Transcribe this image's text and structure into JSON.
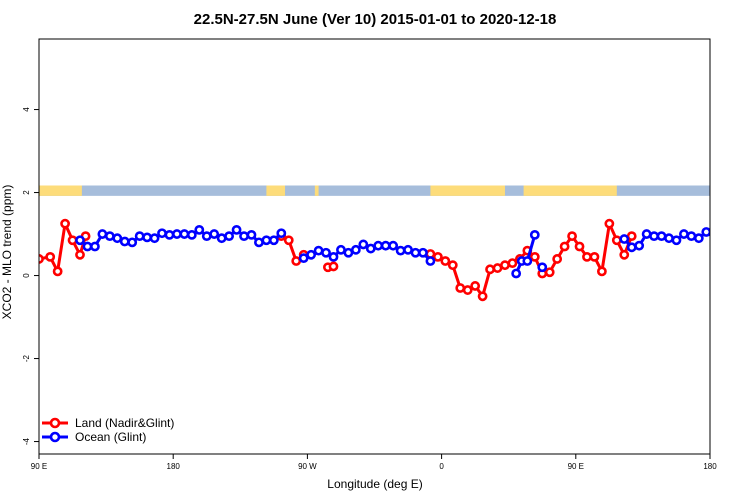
{
  "chart_data": {
    "type": "line",
    "title": "22.5N-27.5N June (Ver 10)   2015-01-01 to 2020-12-18",
    "xlabel": "Longitude (deg E)",
    "ylabel": "XCO2 - MLO trend (ppm)",
    "xlim": [
      90,
      450
    ],
    "ylim": [
      -4.3,
      5.7
    ],
    "x_ticks": [
      {
        "value": 90,
        "label": "90 E"
      },
      {
        "value": 162,
        "label": "180"
      },
      {
        "value": 234,
        "label": "90 W"
      },
      {
        "value": 306,
        "label": "0"
      },
      {
        "value": 378,
        "label": "90 E"
      },
      {
        "value": 450,
        "label": "180"
      }
    ],
    "y_ticks": [
      {
        "value": -4,
        "label": "-4"
      },
      {
        "value": -2,
        "label": "-2"
      },
      {
        "value": 0,
        "label": "0"
      },
      {
        "value": 2,
        "label": "2"
      },
      {
        "value": 4,
        "label": "4"
      }
    ],
    "legend_position": "bottom-left",
    "land_mask_band": {
      "y_range": [
        1.92,
        2.17
      ],
      "ocean_color": "#a6bddb",
      "land_color": "#fddc7a",
      "land_spans": [
        [
          90,
          113
        ],
        [
          212,
          222
        ],
        [
          238,
          240
        ],
        [
          300,
          340
        ],
        [
          350,
          400
        ]
      ]
    },
    "series": [
      {
        "name": "Land (Nadir&Glint)",
        "color": "#ff0000",
        "segments": [
          [
            [
              90,
              0.4
            ],
            [
              96,
              0.45
            ],
            [
              100,
              0.1
            ],
            [
              104,
              1.25
            ],
            [
              108,
              0.85
            ],
            [
              112,
              0.5
            ],
            [
              115,
              0.95
            ]
          ],
          [
            [
              220,
              0.95
            ],
            [
              224,
              0.85
            ],
            [
              228,
              0.35
            ],
            [
              232,
              0.5
            ]
          ],
          [
            [
              245,
              0.2
            ],
            [
              248,
              0.22
            ]
          ],
          [
            [
              300,
              0.52
            ],
            [
              304,
              0.45
            ],
            [
              308,
              0.35
            ],
            [
              312,
              0.25
            ],
            [
              316,
              -0.3
            ],
            [
              320,
              -0.35
            ],
            [
              324,
              -0.25
            ],
            [
              328,
              -0.5
            ],
            [
              332,
              0.15
            ],
            [
              336,
              0.18
            ],
            [
              340,
              0.25
            ],
            [
              344,
              0.3
            ],
            [
              348,
              0.4
            ],
            [
              352,
              0.6
            ],
            [
              356,
              0.45
            ],
            [
              360,
              0.05
            ],
            [
              364,
              0.08
            ],
            [
              368,
              0.4
            ],
            [
              372,
              0.7
            ],
            [
              376,
              0.95
            ],
            [
              380,
              0.7
            ],
            [
              384,
              0.45
            ],
            [
              388,
              0.45
            ],
            [
              392,
              0.1
            ],
            [
              396,
              1.25
            ],
            [
              400,
              0.85
            ],
            [
              404,
              0.5
            ],
            [
              408,
              0.95
            ]
          ]
        ]
      },
      {
        "name": "Ocean (Glint)",
        "color": "#0000ff",
        "segments": [
          [
            [
              112,
              0.85
            ],
            [
              116,
              0.7
            ],
            [
              120,
              0.7
            ],
            [
              124,
              1.0
            ],
            [
              128,
              0.95
            ],
            [
              132,
              0.9
            ],
            [
              136,
              0.82
            ],
            [
              140,
              0.8
            ],
            [
              144,
              0.95
            ],
            [
              148,
              0.92
            ],
            [
              152,
              0.9
            ],
            [
              156,
              1.02
            ],
            [
              160,
              0.98
            ],
            [
              164,
              1.0
            ],
            [
              168,
              1.0
            ],
            [
              172,
              0.98
            ],
            [
              176,
              1.1
            ],
            [
              180,
              0.95
            ],
            [
              184,
              1.0
            ],
            [
              188,
              0.9
            ],
            [
              192,
              0.95
            ],
            [
              196,
              1.1
            ],
            [
              200,
              0.95
            ],
            [
              204,
              0.98
            ],
            [
              208,
              0.8
            ],
            [
              212,
              0.85
            ],
            [
              216,
              0.85
            ],
            [
              220,
              1.02
            ]
          ],
          [
            [
              232,
              0.42
            ],
            [
              236,
              0.5
            ],
            [
              240,
              0.6
            ],
            [
              244,
              0.55
            ],
            [
              248,
              0.45
            ],
            [
              252,
              0.62
            ],
            [
              256,
              0.55
            ],
            [
              260,
              0.62
            ],
            [
              264,
              0.75
            ],
            [
              268,
              0.65
            ],
            [
              272,
              0.72
            ],
            [
              276,
              0.72
            ],
            [
              280,
              0.72
            ],
            [
              284,
              0.6
            ],
            [
              288,
              0.62
            ],
            [
              292,
              0.55
            ],
            [
              296,
              0.55
            ],
            [
              300,
              0.35
            ]
          ],
          [
            [
              346,
              0.05
            ],
            [
              349,
              0.35
            ]
          ],
          [
            [
              352,
              0.35
            ],
            [
              356,
              0.98
            ]
          ],
          [
            [
              360,
              0.2
            ]
          ],
          [
            [
              404,
              0.88
            ],
            [
              408,
              0.68
            ],
            [
              412,
              0.72
            ],
            [
              416,
              1.0
            ],
            [
              420,
              0.95
            ],
            [
              424,
              0.95
            ],
            [
              428,
              0.9
            ],
            [
              432,
              0.85
            ],
            [
              436,
              1.0
            ],
            [
              440,
              0.95
            ],
            [
              444,
              0.9
            ],
            [
              448,
              1.05
            ],
            [
              452,
              1.0
            ]
          ]
        ]
      }
    ]
  }
}
